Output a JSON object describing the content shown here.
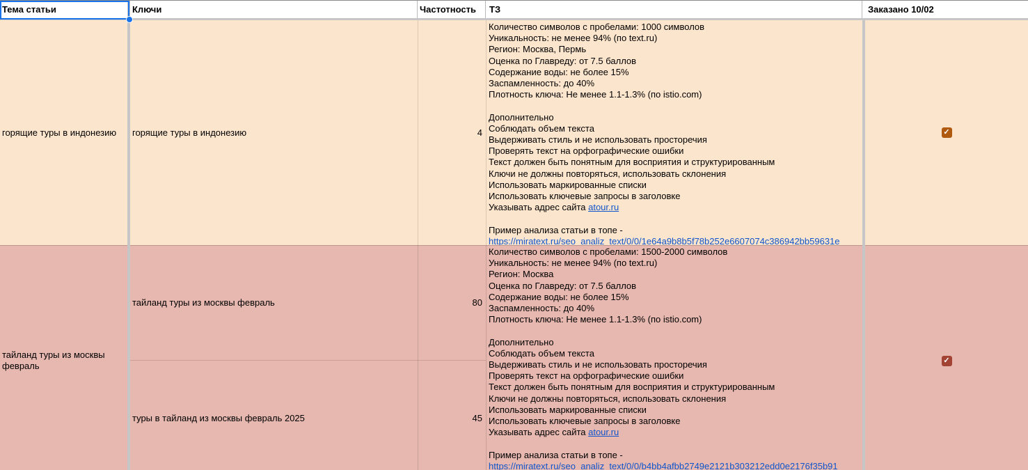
{
  "colors": {
    "row1_bg": "#fce5cd",
    "row2_bg": "#e6b8af",
    "link": "#1155cc",
    "selection": "#1a73e8",
    "divider": "#c6c6c6",
    "checkbox_row1": "#b05a0f",
    "checkbox_row2": "#a34334"
  },
  "icons": {
    "checkmark": "✓"
  },
  "header": {
    "topic": "Тема статьи",
    "keys": "Ключи",
    "frequency": "Частотность",
    "tz": "ТЗ",
    "ordered": "Заказано 10/02"
  },
  "rows": [
    {
      "topic": "горящие туры в индонезию",
      "keys": [
        {
          "text": "горящие туры в индонезию",
          "frequency": "4"
        }
      ],
      "ordered_checked": true,
      "tz_lines": [
        [
          {
            "t": "Количество символов с пробелами: 1000 символов"
          }
        ],
        [
          {
            "t": "Уникальность: не менее 94% (по text.ru)"
          }
        ],
        [
          {
            "t": "Регион: Москва, Пермь"
          }
        ],
        [
          {
            "t": "Оценка по Главреду: от 7.5 баллов"
          }
        ],
        [
          {
            "t": "Содержание воды: не более 15%"
          }
        ],
        [
          {
            "t": "Заспамленность: до 40%"
          }
        ],
        [
          {
            "t": "Плотность ключа: Не менее 1.1-1.3% (по istio.com)"
          }
        ],
        [],
        [
          {
            "t": "Дополнительно"
          }
        ],
        [
          {
            "t": "Соблюдать объем текста"
          }
        ],
        [
          {
            "t": "Выдерживать стиль и не использовать просторечия"
          }
        ],
        [
          {
            "t": "Проверять текст на орфографические ошибки"
          }
        ],
        [
          {
            "t": "Текст должен быть понятным для восприятия и структурированным"
          }
        ],
        [
          {
            "t": "Ключи не должны повторяться, использовать склонения"
          }
        ],
        [
          {
            "t": "Использовать маркированные списки"
          }
        ],
        [
          {
            "t": "Использовать ключевые запросы в заголовке"
          }
        ],
        [
          {
            "t": "Указывать адрес сайта "
          },
          {
            "t": "atour.ru",
            "link": true
          }
        ],
        [],
        [
          {
            "t": "Пример анализа статьи в топе -"
          }
        ],
        [
          {
            "t": "https://miratext.ru/seo_analiz_text/0/0/1e64a9b8b5f78b252e6607074c386942bb59631e",
            "link": true
          }
        ]
      ]
    },
    {
      "topic": "тайланд туры из москвы февраль",
      "keys": [
        {
          "text": "тайланд туры из москвы февраль",
          "frequency": "80"
        },
        {
          "text": "туры в тайланд из москвы февраль 2025",
          "frequency": "45"
        }
      ],
      "ordered_checked": true,
      "tz_lines": [
        [
          {
            "t": "Количество символов с пробелами: 1500-2000 символов"
          }
        ],
        [
          {
            "t": "Уникальность: не менее 94% (по text.ru)"
          }
        ],
        [
          {
            "t": "Регион: Москва"
          }
        ],
        [
          {
            "t": "Оценка по Главреду: от 7.5 баллов"
          }
        ],
        [
          {
            "t": "Содержание воды: не более 15%"
          }
        ],
        [
          {
            "t": "Заспамленность: до 40%"
          }
        ],
        [
          {
            "t": "Плотность ключа: Не менее 1.1-1.3% (по istio.com)"
          }
        ],
        [],
        [
          {
            "t": "Дополнительно"
          }
        ],
        [
          {
            "t": "Соблюдать объем текста"
          }
        ],
        [
          {
            "t": "Выдерживать стиль и не использовать просторечия"
          }
        ],
        [
          {
            "t": "Проверять текст на орфографические ошибки"
          }
        ],
        [
          {
            "t": "Текст должен быть понятным для восприятия и структурированным"
          }
        ],
        [
          {
            "t": "Ключи не должны повторяться, использовать склонения"
          }
        ],
        [
          {
            "t": "Использовать маркированные списки"
          }
        ],
        [
          {
            "t": "Использовать ключевые запросы в заголовке"
          }
        ],
        [
          {
            "t": "Указывать адрес сайта "
          },
          {
            "t": "atour.ru",
            "link": true
          }
        ],
        [],
        [
          {
            "t": "Пример анализа статьи в топе -"
          }
        ],
        [
          {
            "t": "https://miratext.ru/seo_analiz_text/0/0/b4bb4afbb2749e2121b303212edd0e2176f35b91",
            "link": true
          }
        ]
      ]
    }
  ]
}
